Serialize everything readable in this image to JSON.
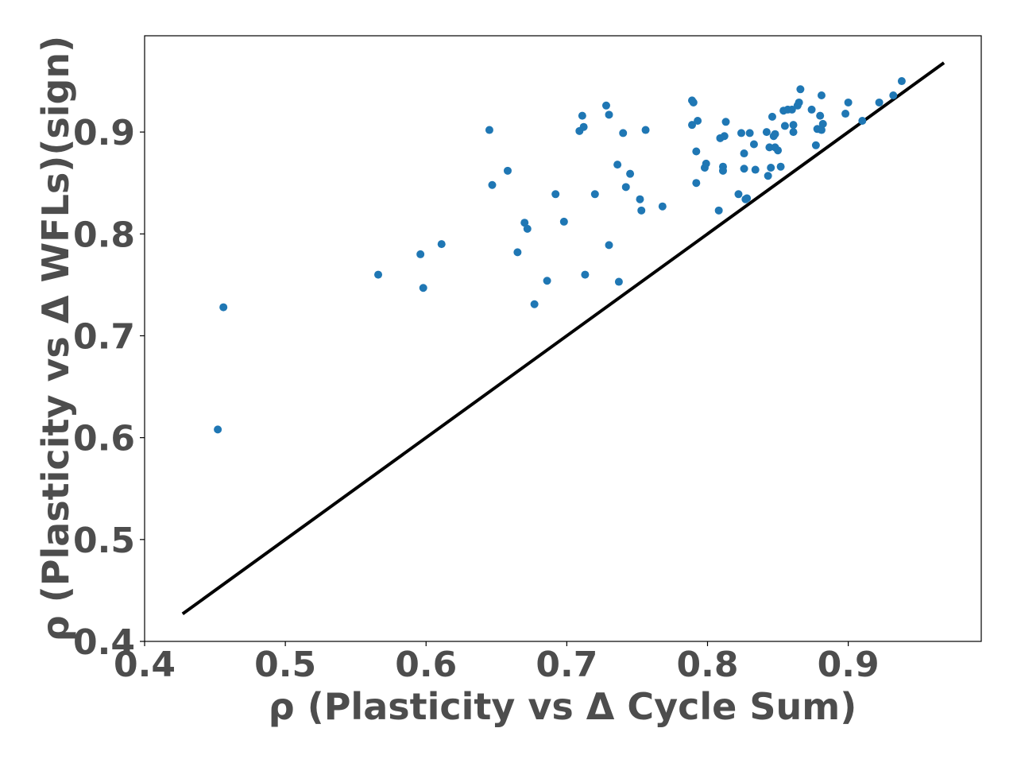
{
  "chart_data": {
    "type": "scatter",
    "xlabel": "ρ (Plasticity vs Δ Cycle Sum)",
    "ylabel": "ρ (Plasticity vs Δ WFLs)(sign)",
    "xlim": [
      0.4,
      0.9945
    ],
    "ylim": [
      0.4,
      0.9945
    ],
    "xticks": [
      0.4,
      0.5,
      0.6,
      0.7,
      0.8,
      0.9
    ],
    "yticks": [
      0.4,
      0.5,
      0.6,
      0.7,
      0.8,
      0.9
    ],
    "xtick_labels": [
      "0.4",
      "0.5",
      "0.6",
      "0.7",
      "0.8",
      "0.9"
    ],
    "ytick_labels": [
      "0.4",
      "0.5",
      "0.6",
      "0.7",
      "0.8",
      "0.9"
    ],
    "grid": false,
    "legend": "none",
    "point_color": "#1f77b4",
    "reference_line": {
      "x": [
        0.427,
        0.968
      ],
      "y": [
        0.427,
        0.968
      ],
      "color": "#000000",
      "style": "solid"
    },
    "series": [
      {
        "points": [
          [
            0.452,
            0.608
          ],
          [
            0.456,
            0.728
          ],
          [
            0.566,
            0.76
          ],
          [
            0.596,
            0.78
          ],
          [
            0.598,
            0.747
          ],
          [
            0.611,
            0.79
          ],
          [
            0.645,
            0.902
          ],
          [
            0.647,
            0.848
          ],
          [
            0.658,
            0.862
          ],
          [
            0.665,
            0.782
          ],
          [
            0.67,
            0.811
          ],
          [
            0.672,
            0.805
          ],
          [
            0.677,
            0.731
          ],
          [
            0.686,
            0.754
          ],
          [
            0.692,
            0.839
          ],
          [
            0.698,
            0.812
          ],
          [
            0.709,
            0.901
          ],
          [
            0.711,
            0.916
          ],
          [
            0.712,
            0.905
          ],
          [
            0.713,
            0.76
          ],
          [
            0.72,
            0.839
          ],
          [
            0.728,
            0.926
          ],
          [
            0.73,
            0.917
          ],
          [
            0.73,
            0.789
          ],
          [
            0.736,
            0.868
          ],
          [
            0.737,
            0.753
          ],
          [
            0.74,
            0.899
          ],
          [
            0.742,
            0.846
          ],
          [
            0.745,
            0.859
          ],
          [
            0.752,
            0.834
          ],
          [
            0.753,
            0.823
          ],
          [
            0.756,
            0.902
          ],
          [
            0.768,
            0.827
          ],
          [
            0.789,
            0.931
          ],
          [
            0.79,
            0.929
          ],
          [
            0.789,
            0.907
          ],
          [
            0.792,
            0.881
          ],
          [
            0.793,
            0.911
          ],
          [
            0.792,
            0.85
          ],
          [
            0.798,
            0.865
          ],
          [
            0.799,
            0.869
          ],
          [
            0.808,
            0.823
          ],
          [
            0.809,
            0.894
          ],
          [
            0.811,
            0.866
          ],
          [
            0.811,
            0.862
          ],
          [
            0.812,
            0.896
          ],
          [
            0.813,
            0.91
          ],
          [
            0.822,
            0.839
          ],
          [
            0.824,
            0.899
          ],
          [
            0.826,
            0.879
          ],
          [
            0.826,
            0.864
          ],
          [
            0.827,
            0.834
          ],
          [
            0.828,
            0.835
          ],
          [
            0.83,
            0.899
          ],
          [
            0.833,
            0.888
          ],
          [
            0.834,
            0.863
          ],
          [
            0.842,
            0.9
          ],
          [
            0.843,
            0.857
          ],
          [
            0.844,
            0.885
          ],
          [
            0.845,
            0.865
          ],
          [
            0.846,
            0.915
          ],
          [
            0.847,
            0.896
          ],
          [
            0.848,
            0.898
          ],
          [
            0.848,
            0.885
          ],
          [
            0.85,
            0.882
          ],
          [
            0.852,
            0.866
          ],
          [
            0.854,
            0.921
          ],
          [
            0.855,
            0.906
          ],
          [
            0.857,
            0.922
          ],
          [
            0.86,
            0.922
          ],
          [
            0.861,
            0.907
          ],
          [
            0.861,
            0.9
          ],
          [
            0.864,
            0.926
          ],
          [
            0.865,
            0.929
          ],
          [
            0.866,
            0.942
          ],
          [
            0.874,
            0.922
          ],
          [
            0.877,
            0.887
          ],
          [
            0.878,
            0.903
          ],
          [
            0.88,
            0.916
          ],
          [
            0.881,
            0.936
          ],
          [
            0.881,
            0.902
          ],
          [
            0.882,
            0.908
          ],
          [
            0.898,
            0.918
          ],
          [
            0.9,
            0.929
          ],
          [
            0.91,
            0.911
          ],
          [
            0.922,
            0.929
          ],
          [
            0.932,
            0.936
          ],
          [
            0.938,
            0.95
          ]
        ]
      }
    ]
  }
}
